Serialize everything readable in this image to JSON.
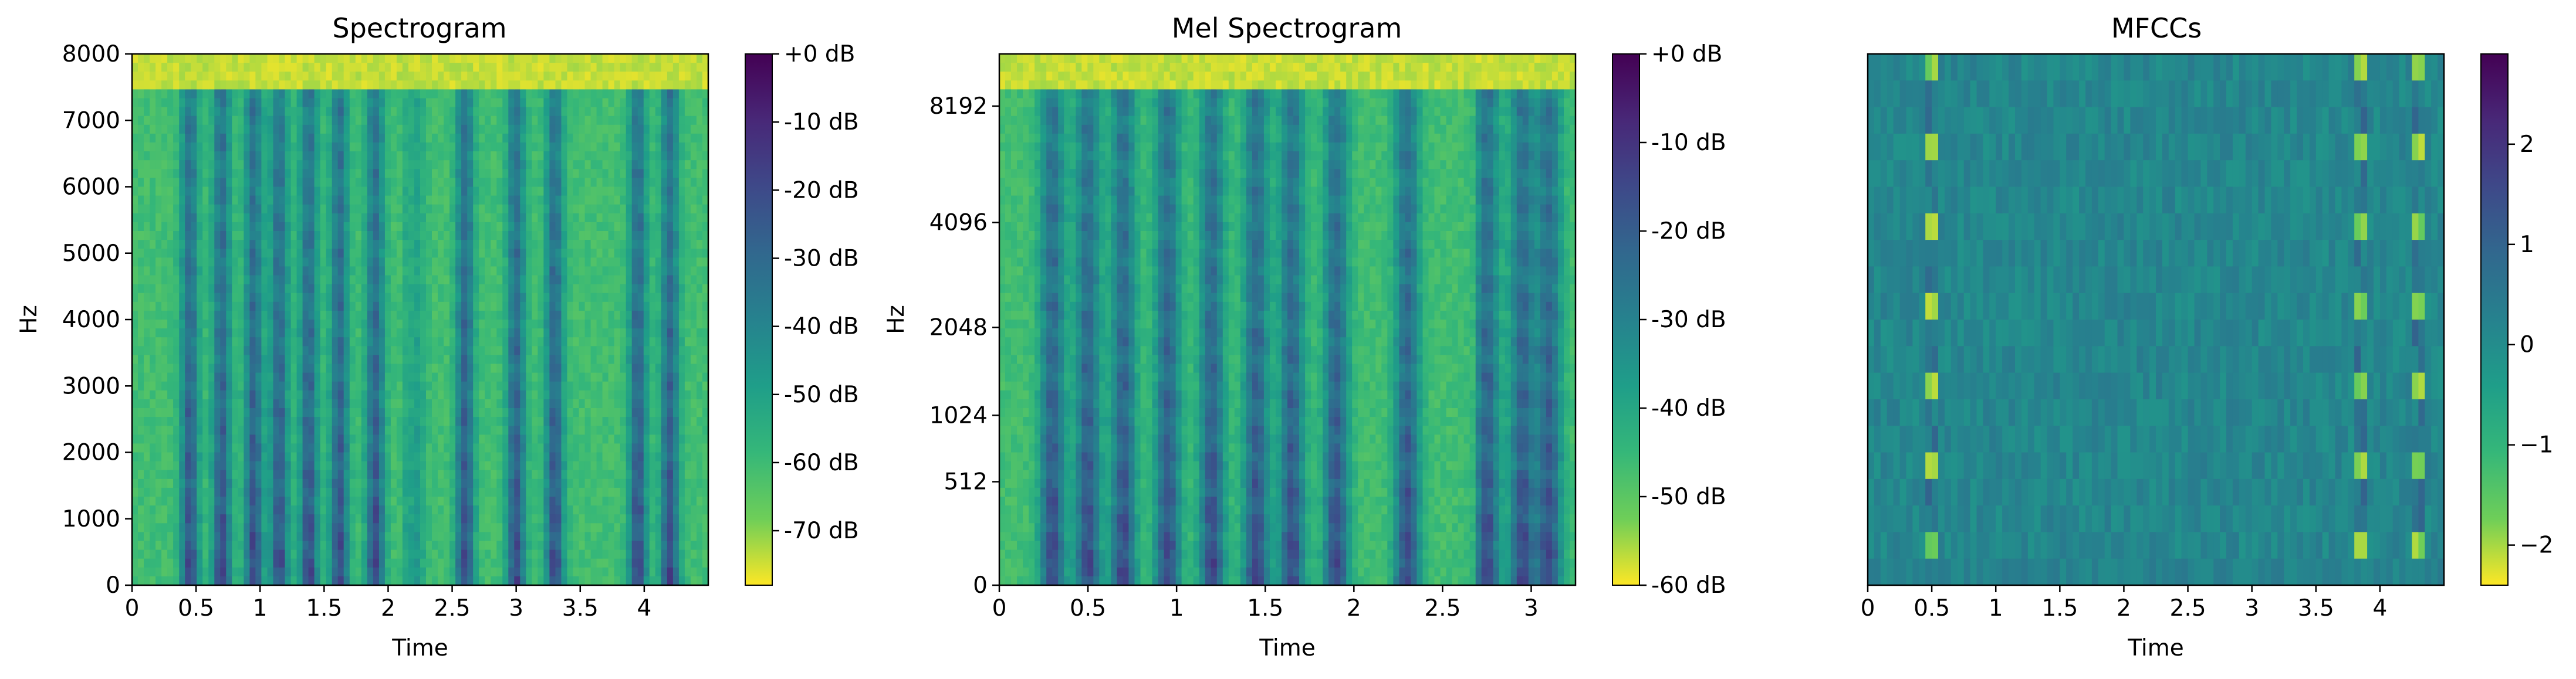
{
  "figure": {
    "background": "#ffffff",
    "ink": "#000000"
  },
  "chart_data": [
    {
      "type": "heatmap",
      "title": "Spectrogram",
      "xlabel": "Time",
      "ylabel": "Hz",
      "xlim": [
        0,
        4.5
      ],
      "ylim": [
        0,
        8000
      ],
      "y_scale": "linear",
      "x_ticks": [
        0,
        0.5,
        1,
        1.5,
        2,
        2.5,
        3,
        3.5,
        4
      ],
      "x_tick_labels": [
        "0",
        "0.5",
        "1",
        "1.5",
        "2",
        "2.5",
        "3",
        "3.5",
        "4"
      ],
      "y_ticks": [
        0,
        1000,
        2000,
        3000,
        4000,
        5000,
        6000,
        7000,
        8000
      ],
      "y_tick_labels": [
        "0",
        "1000",
        "2000",
        "3000",
        "4000",
        "5000",
        "6000",
        "7000",
        "8000"
      ],
      "colormap": "viridis_r",
      "colorbar": {
        "range": [
          -78,
          0
        ],
        "ticks": [
          0,
          -10,
          -20,
          -30,
          -40,
          -50,
          -60,
          -70
        ],
        "tick_labels": [
          "+0 dB",
          "-10 dB",
          "-20 dB",
          "-30 dB",
          "-40 dB",
          "-50 dB",
          "-60 dB",
          "-70 dB"
        ]
      },
      "speech_bursts_time": [
        0.45,
        0.7,
        0.95,
        1.15,
        1.38,
        1.62,
        1.9,
        2.22,
        2.6,
        3.0,
        3.3,
        3.95,
        4.2
      ],
      "silence_intervals_time": [
        [
          2.15,
          2.5
        ],
        [
          3.5,
          3.75
        ]
      ]
    },
    {
      "type": "heatmap",
      "title": "Mel Spectrogram",
      "xlabel": "Time",
      "ylabel": "Hz",
      "xlim": [
        0,
        3.25
      ],
      "ylim": [
        0,
        11025
      ],
      "y_scale": "mel",
      "x_ticks": [
        0,
        0.5,
        1,
        1.5,
        2,
        2.5,
        3
      ],
      "x_tick_labels": [
        "0",
        "0.5",
        "1",
        "1.5",
        "2",
        "2.5",
        "3"
      ],
      "y_ticks": [
        0,
        512,
        1024,
        2048,
        4096,
        8192
      ],
      "y_tick_labels": [
        "0",
        "512",
        "1024",
        "2048",
        "4096",
        "8192"
      ],
      "colormap": "viridis_r",
      "colorbar": {
        "range": [
          -60,
          0
        ],
        "ticks": [
          0,
          -10,
          -20,
          -30,
          -40,
          -50,
          -60
        ],
        "tick_labels": [
          "+0 dB",
          "-10 dB",
          "-20 dB",
          "-30 dB",
          "-40 dB",
          "-50 dB",
          "-60 dB"
        ]
      },
      "speech_bursts_time": [
        0.3,
        0.5,
        0.7,
        0.95,
        1.2,
        1.45,
        1.65,
        1.9,
        2.3,
        2.75,
        2.95,
        3.1
      ],
      "silence_intervals_time": [
        [
          2.5,
          2.7
        ]
      ]
    },
    {
      "type": "heatmap",
      "title": "MFCCs",
      "xlabel": "Time",
      "ylabel": "",
      "xlim": [
        0,
        4.5
      ],
      "x_ticks": [
        0,
        0.5,
        1,
        1.5,
        2,
        2.5,
        3,
        3.5,
        4
      ],
      "x_tick_labels": [
        "0",
        "0.5",
        "1",
        "1.5",
        "2",
        "2.5",
        "3",
        "3.5",
        "4"
      ],
      "y_ticks": [],
      "colormap": "viridis_r",
      "colorbar": {
        "range": [
          -2.4,
          2.9
        ],
        "ticks": [
          2,
          1,
          0,
          -1,
          -2
        ],
        "tick_labels": [
          "2",
          "1",
          "0",
          "−1",
          "−2"
        ]
      },
      "coefficients": 20,
      "highlight_columns_time": [
        0.5,
        3.85,
        4.3
      ]
    }
  ]
}
